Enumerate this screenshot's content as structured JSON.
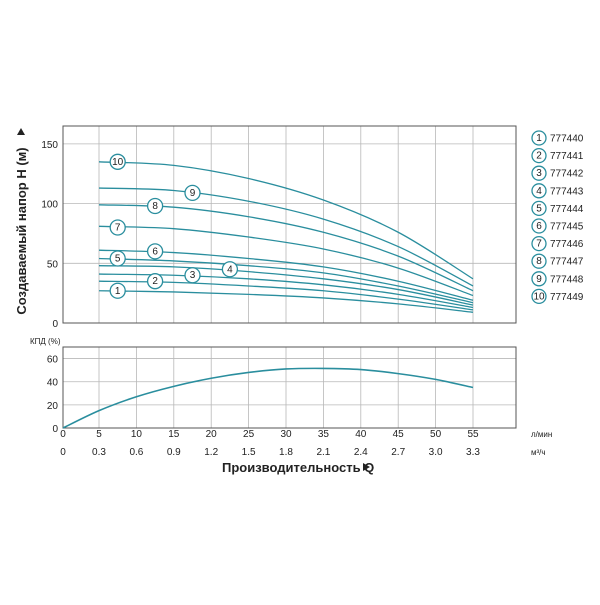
{
  "chart_data": [
    {
      "type": "line",
      "ylabel": "Создаваемый напор H (м)",
      "xlabel": "Производительность Q",
      "xlim": [
        0,
        55
      ],
      "ylim": [
        0,
        165
      ],
      "y_ticks": [
        0,
        50,
        100,
        150
      ],
      "grid": true,
      "legend_placement": "right",
      "series": [
        {
          "name": "777440",
          "badge": "1",
          "x": [
            5,
            15,
            25,
            35,
            45,
            55
          ],
          "values": [
            27,
            26,
            24,
            21,
            16,
            9
          ]
        },
        {
          "name": "777441",
          "badge": "2",
          "x": [
            5,
            15,
            25,
            35,
            45,
            55
          ],
          "values": [
            35,
            34,
            31,
            27,
            20,
            11
          ]
        },
        {
          "name": "777442",
          "badge": "3",
          "x": [
            5,
            15,
            25,
            35,
            45,
            55
          ],
          "values": [
            41,
            40,
            37,
            32,
            24,
            13
          ]
        },
        {
          "name": "777443",
          "badge": "4",
          "x": [
            5,
            15,
            25,
            35,
            45,
            55
          ],
          "values": [
            48,
            47,
            43,
            37,
            28,
            15
          ]
        },
        {
          "name": "777444",
          "badge": "5",
          "x": [
            5,
            15,
            25,
            35,
            45,
            55
          ],
          "values": [
            54,
            52,
            48,
            42,
            31,
            17
          ]
        },
        {
          "name": "777445",
          "badge": "6",
          "x": [
            5,
            15,
            25,
            35,
            45,
            55
          ],
          "values": [
            61,
            59,
            54,
            47,
            35,
            19
          ]
        },
        {
          "name": "777446",
          "badge": "7",
          "x": [
            5,
            15,
            25,
            35,
            45,
            55
          ],
          "values": [
            81,
            79,
            72,
            62,
            46,
            23
          ]
        },
        {
          "name": "777447",
          "badge": "8",
          "x": [
            5,
            15,
            25,
            35,
            45,
            55
          ],
          "values": [
            99,
            97,
            89,
            76,
            56,
            27
          ]
        },
        {
          "name": "777448",
          "badge": "9",
          "x": [
            5,
            15,
            25,
            35,
            45,
            55
          ],
          "values": [
            113,
            111,
            102,
            87,
            64,
            31
          ]
        },
        {
          "name": "777449",
          "badge": "10",
          "x": [
            5,
            15,
            25,
            35,
            45,
            55
          ],
          "values": [
            135,
            132,
            121,
            103,
            76,
            37
          ]
        }
      ],
      "badge_positions": [
        {
          "badge": "1",
          "x": 7.5,
          "y": 27
        },
        {
          "badge": "2",
          "x": 12.5,
          "y": 35
        },
        {
          "badge": "3",
          "x": 17.5,
          "y": 40
        },
        {
          "badge": "4",
          "x": 22.5,
          "y": 45
        },
        {
          "badge": "5",
          "x": 7.5,
          "y": 54
        },
        {
          "badge": "6",
          "x": 12.5,
          "y": 60
        },
        {
          "badge": "7",
          "x": 7.5,
          "y": 80
        },
        {
          "badge": "8",
          "x": 12.5,
          "y": 98
        },
        {
          "badge": "9",
          "x": 17.5,
          "y": 109
        },
        {
          "badge": "10",
          "x": 7.5,
          "y": 135
        }
      ]
    },
    {
      "type": "line",
      "ylabel": "КПД (%)",
      "xlim": [
        0,
        55
      ],
      "ylim": [
        0,
        70
      ],
      "y_ticks": [
        0,
        20,
        40,
        60
      ],
      "grid": true,
      "series": [
        {
          "x": [
            0,
            5,
            10,
            15,
            20,
            25,
            30,
            35,
            40,
            45,
            50,
            55
          ],
          "values": [
            0,
            15,
            27,
            36,
            43,
            48,
            51,
            51.5,
            50.5,
            47,
            42,
            35
          ]
        }
      ],
      "x_ticks_lmin": [
        "0",
        "5",
        "10",
        "15",
        "20",
        "25",
        "30",
        "35",
        "40",
        "45",
        "50",
        "55"
      ],
      "x_ticks_m3h": [
        "0",
        "0.3",
        "0.6",
        "0.9",
        "1.2",
        "1.5",
        "1.8",
        "2.1",
        "2.4",
        "2.7",
        "3.0",
        "3.3"
      ],
      "unit_lmin": "л/мин",
      "unit_m3h": "м³/ч"
    }
  ]
}
